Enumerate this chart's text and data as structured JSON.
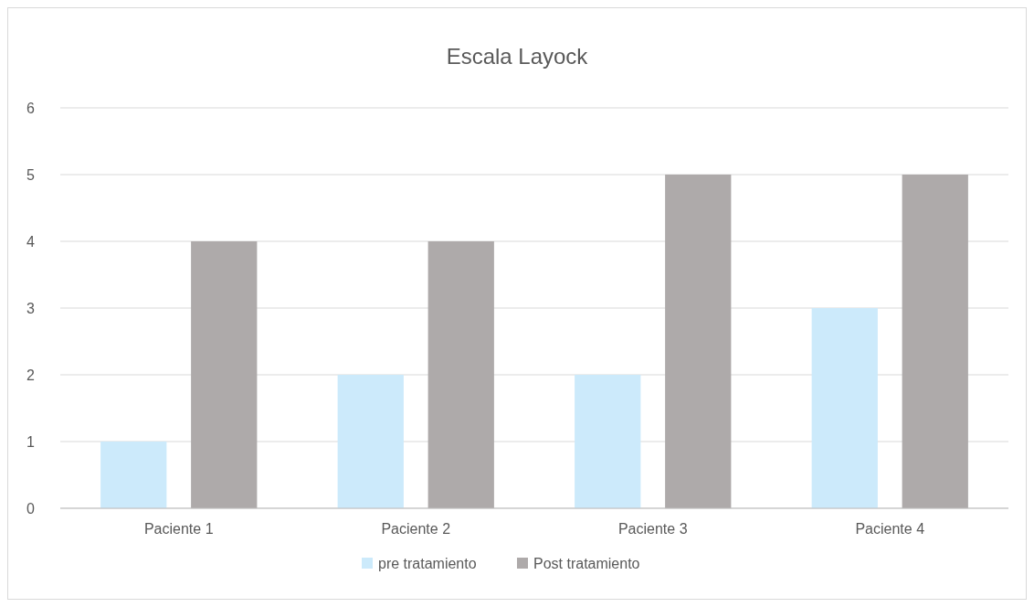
{
  "chart_data": {
    "type": "bar",
    "title": "Escala Layock",
    "categories": [
      "Paciente 1",
      "Paciente 2",
      "Paciente 3",
      "Paciente 4"
    ],
    "series": [
      {
        "name": "pre tratamiento",
        "color": "#cceafb",
        "values": [
          1,
          2,
          2,
          3
        ]
      },
      {
        "name": "Post tratamiento",
        "color": "#aeaaaa",
        "values": [
          4,
          4,
          5,
          5
        ]
      }
    ],
    "ylim": [
      0,
      6
    ],
    "yticks": [
      0,
      1,
      2,
      3,
      4,
      5,
      6
    ],
    "grid": "y",
    "legend": "bottom"
  }
}
